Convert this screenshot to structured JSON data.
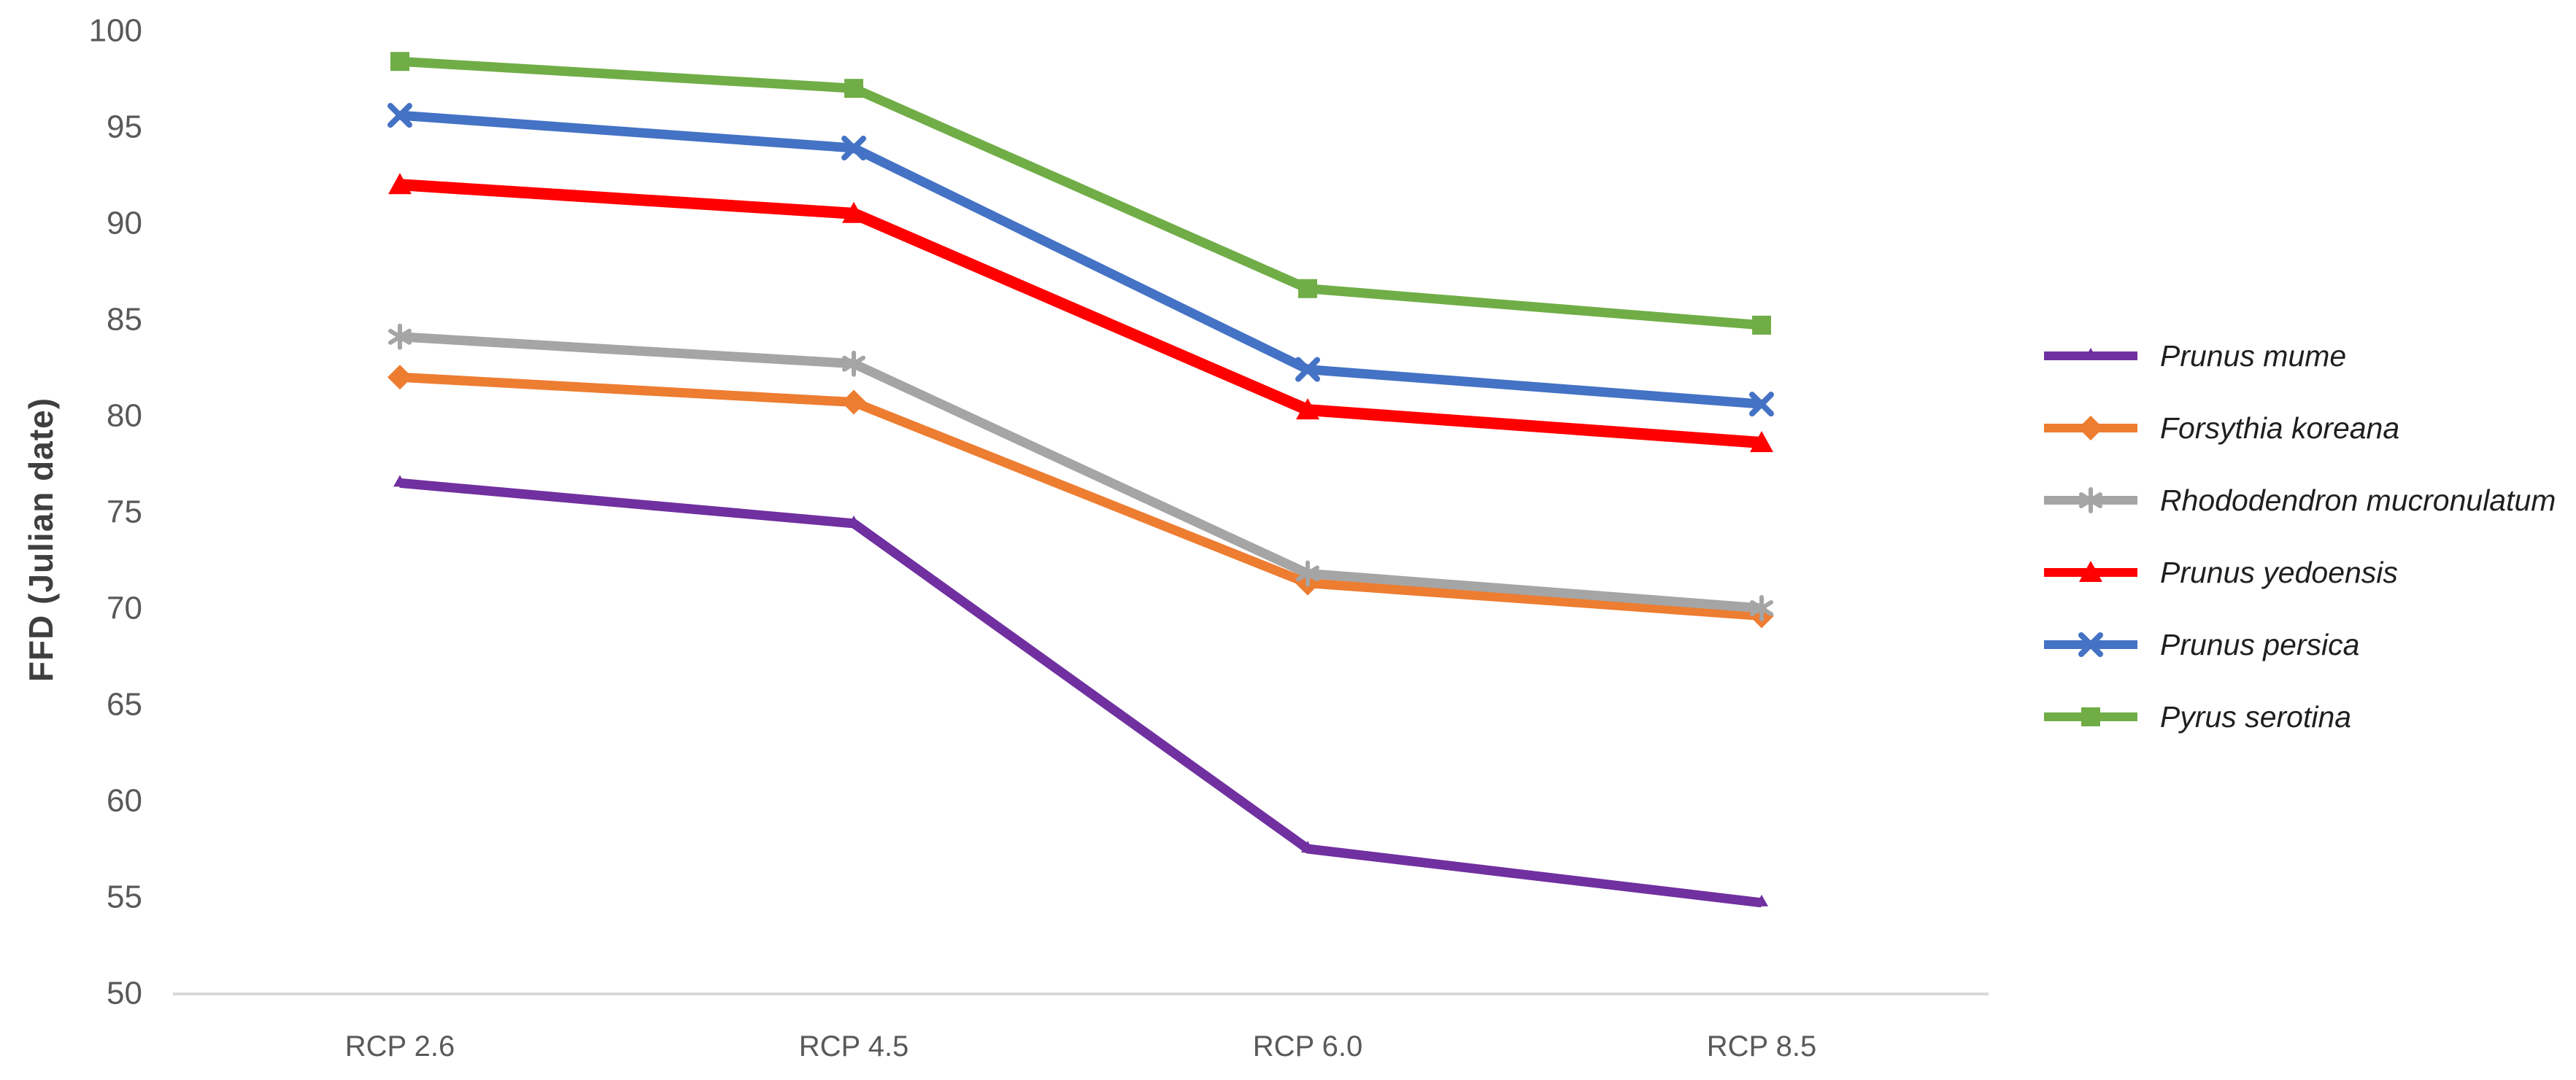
{
  "chart_data": {
    "type": "line",
    "title": "",
    "xlabel": "",
    "ylabel": "FFD (Julian date)",
    "categories": [
      "RCP 2.6",
      "RCP 4.5",
      "RCP 6.0",
      "RCP 8.5"
    ],
    "ylim": [
      50,
      100
    ],
    "yticks": [
      50,
      55,
      60,
      65,
      70,
      75,
      80,
      85,
      90,
      95,
      100
    ],
    "grid": false,
    "legend_position": "right",
    "colors": {
      "axis_line": "#d9d9d9",
      "tick_label": "#595959",
      "axis_title": "#3f3f3f",
      "legend_text": "#1f1f1f",
      "background": "#ffffff"
    },
    "series": [
      {
        "name": "Prunus mume",
        "color": "#7030A0",
        "marker": "triangle-small",
        "line_width": 13,
        "values": [
          76.5,
          74.4,
          57.5,
          54.7
        ]
      },
      {
        "name": "Forsythia koreana",
        "color": "#ED7D31",
        "marker": "diamond",
        "line_width": 13,
        "values": [
          82.0,
          80.7,
          71.3,
          69.6
        ]
      },
      {
        "name": "Rhododendron mucronulatum",
        "color": "#A5A5A5",
        "marker": "asterisk",
        "line_width": 13,
        "values": [
          84.1,
          82.7,
          71.8,
          70.0
        ]
      },
      {
        "name": "Prunus yedoensis",
        "color": "#FF0000",
        "marker": "triangle",
        "line_width": 16,
        "values": [
          92.0,
          90.5,
          80.3,
          78.6
        ]
      },
      {
        "name": "Prunus persica",
        "color": "#4472C4",
        "marker": "x",
        "line_width": 13,
        "values": [
          95.6,
          93.9,
          82.4,
          80.6
        ]
      },
      {
        "name": "Pyrus serotina",
        "color": "#70AD47",
        "marker": "square",
        "line_width": 13,
        "values": [
          98.4,
          97.0,
          86.6,
          84.7
        ]
      }
    ]
  }
}
